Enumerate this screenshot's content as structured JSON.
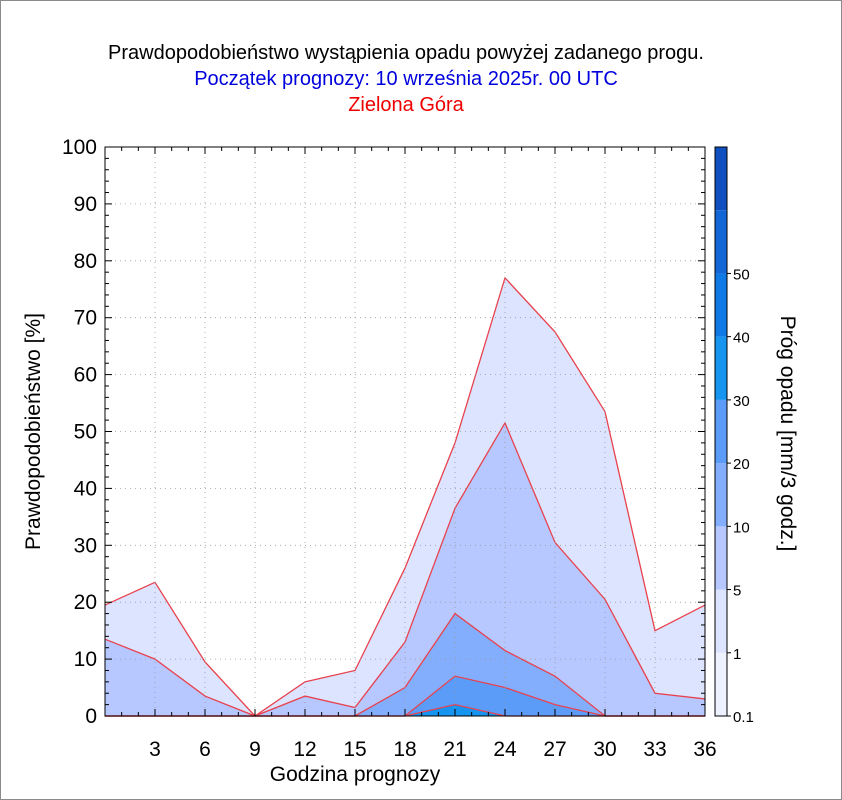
{
  "header": {
    "title": "Prawdopodobieństwo wystąpienia opadu powyżej zadanego progu.",
    "subtitle": "Początek prognozy: 10 września 2025r. 00 UTC",
    "location": "Zielona Góra"
  },
  "chart_data": {
    "type": "area",
    "title": "Prawdopodobieństwo wystąpienia opadu powyżej zadanego progu.",
    "subtitle": "Początek prognozy: 10 września 2025r. 00 UTC",
    "location": "Zielona Góra",
    "xlabel": "Godzina prognozy",
    "ylabel": "Prawdopodobieństwo [%]",
    "xlim": [
      0,
      36
    ],
    "ylim": [
      0,
      100
    ],
    "x_ticks": [
      3,
      6,
      9,
      12,
      15,
      18,
      21,
      24,
      27,
      30,
      33,
      36
    ],
    "y_ticks": [
      0,
      10,
      20,
      30,
      40,
      50,
      60,
      70,
      80,
      90,
      100
    ],
    "grid": true,
    "x": [
      0,
      3,
      6,
      9,
      12,
      15,
      18,
      21,
      24,
      27,
      30,
      33,
      36
    ],
    "series": [
      {
        "threshold": "0.1",
        "color": "#dce4ff",
        "values": [
          19.5,
          23.5,
          9.5,
          0,
          6,
          8,
          26,
          48,
          77,
          67.5,
          53.5,
          15,
          19.5
        ]
      },
      {
        "threshold": "1",
        "color": "#b6c8ff",
        "values": [
          13.5,
          10,
          3.5,
          0,
          3.5,
          1.5,
          13,
          36.5,
          51.5,
          30.5,
          20.5,
          4,
          3
        ]
      },
      {
        "threshold": "5",
        "color": "#82aefd",
        "values": [
          0,
          0,
          0,
          0,
          0,
          0,
          5,
          18,
          11.5,
          7,
          0,
          0,
          0
        ]
      },
      {
        "threshold": "10",
        "color": "#5a9cf8",
        "values": [
          0,
          0,
          0,
          0,
          0,
          0,
          0,
          7,
          5,
          2,
          0,
          0,
          0
        ]
      },
      {
        "threshold": "20",
        "color": "#1594f0",
        "values": [
          0,
          0,
          0,
          0,
          0,
          0,
          0,
          2,
          0,
          0,
          0,
          0,
          0
        ]
      }
    ],
    "colorbar": {
      "label": "Próg opadu [mm/3 godz.]",
      "levels": [
        "0.1",
        "1",
        "5",
        "10",
        "20",
        "30",
        "40",
        "50"
      ],
      "colors": [
        "#eef2ff",
        "#dce4ff",
        "#b6c8ff",
        "#82aefd",
        "#5a9cf8",
        "#1594f0",
        "#0f7ae6",
        "#1266d6",
        "#0f4fc0"
      ]
    }
  }
}
